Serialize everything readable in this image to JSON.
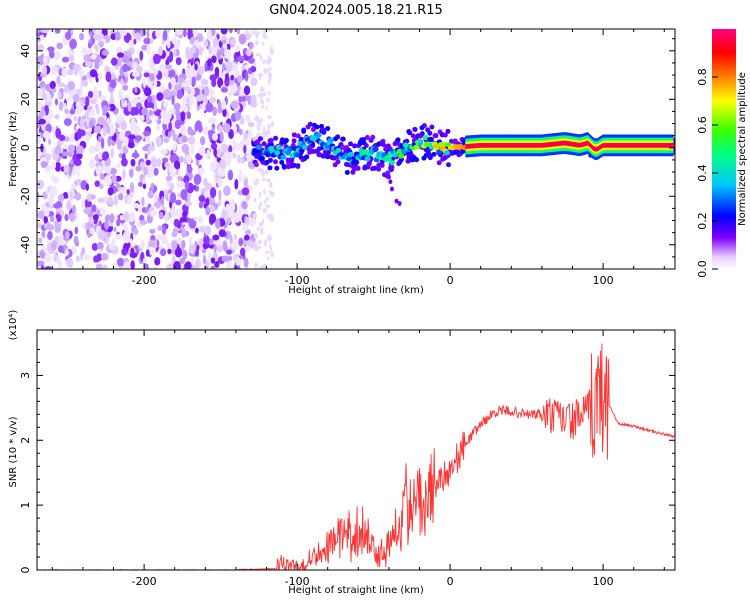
{
  "title": "GN04.2024.005.18.21.R15",
  "chart_data": [
    {
      "type": "heatmap",
      "xlabel": "Height of straight line (km)",
      "ylabel": "Frequency (Hz)",
      "xlim": [
        -270,
        147
      ],
      "ylim": [
        -50,
        49
      ],
      "xticks": [
        -200,
        -100,
        0,
        100
      ],
      "yticks": [
        -40,
        -20,
        0,
        20,
        40
      ],
      "grid": false,
      "colorbar": {
        "label": "Normalized spectral amplitude",
        "range": [
          0,
          1
        ],
        "ticks": [
          0.0,
          0.2,
          0.4,
          0.6,
          0.8
        ],
        "colors": [
          "#ffffff",
          "#8000ff",
          "#0000ff",
          "#00c8ff",
          "#00ff80",
          "#40ff00",
          "#ffff00",
          "#ff8000",
          "#ff0000",
          "#ff0080"
        ]
      },
      "ridge": {
        "x": [
          -128,
          -115,
          -100,
          -90,
          -80,
          -70,
          -60,
          -50,
          -40,
          -30,
          -20,
          -15,
          -10,
          0,
          20,
          40,
          60,
          75,
          85,
          90,
          95,
          100,
          110,
          147
        ],
        "freq": [
          -2,
          -2,
          -1,
          5,
          2,
          -3,
          -4,
          -2,
          -5,
          -1,
          2,
          3,
          0,
          0,
          1,
          1,
          1,
          2,
          1,
          2,
          -1,
          1,
          1,
          1
        ],
        "amplitude": [
          0.25,
          0.3,
          0.3,
          0.3,
          0.3,
          0.3,
          0.35,
          0.35,
          0.4,
          0.5,
          0.55,
          0.6,
          0.65,
          0.7,
          0.85,
          0.95,
          1.0,
          1.0,
          0.95,
          0.9,
          0.85,
          0.95,
          1.0,
          1.0
        ]
      },
      "noise_region": {
        "x_range": [
          -270,
          -128
        ],
        "freq_range": [
          -50,
          49
        ],
        "amplitude_max": 0.2
      }
    },
    {
      "type": "line",
      "xlabel": "Height of straight line (km)",
      "ylabel": "SNR (10 * v/v)",
      "scale_label": "(x10⁴)",
      "xlim": [
        -270,
        147
      ],
      "ylim": [
        0,
        3.7
      ],
      "xticks": [
        -200,
        -100,
        0,
        100
      ],
      "yticks": [
        0,
        1,
        2,
        3
      ],
      "grid": false,
      "series": [
        {
          "color": "#ff3333",
          "x": [
            -270,
            -200,
            -150,
            -115,
            -112,
            -108,
            -100,
            -90,
            -80,
            -70,
            -60,
            -55,
            -50,
            -45,
            -40,
            -35,
            -30,
            -25,
            -20,
            -15,
            -10,
            -5,
            0,
            10,
            20,
            30,
            40,
            50,
            60,
            70,
            80,
            90,
            95,
            100,
            105,
            110,
            120,
            130,
            147
          ],
          "y": [
            0.0,
            0.0,
            0.0,
            0.02,
            0.12,
            0.08,
            0.06,
            0.2,
            0.4,
            0.55,
            0.6,
            0.55,
            0.35,
            0.25,
            0.45,
            0.75,
            0.95,
            1.05,
            1.15,
            1.25,
            1.35,
            1.45,
            1.55,
            1.95,
            2.25,
            2.45,
            2.45,
            2.4,
            2.4,
            2.35,
            2.3,
            2.45,
            2.6,
            2.7,
            2.5,
            2.25,
            2.22,
            2.15,
            2.05
          ]
        }
      ]
    }
  ]
}
